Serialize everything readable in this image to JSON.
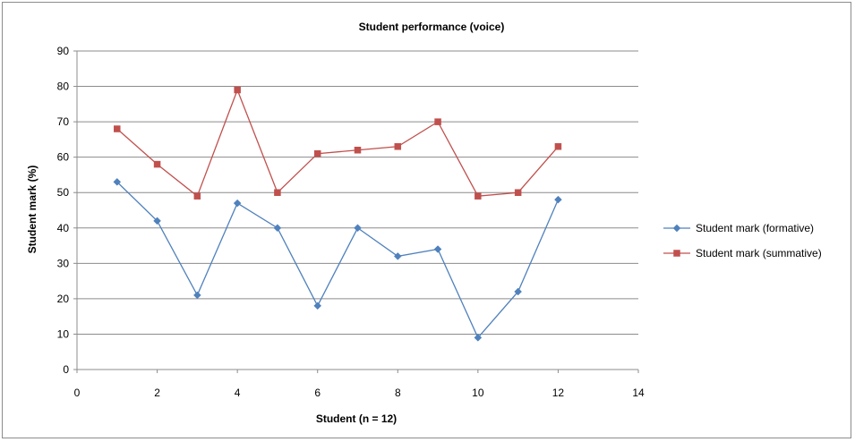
{
  "chart_data": {
    "type": "scatter",
    "title": "Student performance (voice)",
    "xlabel": "Student (n = 12)",
    "ylabel": "Student mark (%)",
    "xlim": [
      0,
      14
    ],
    "ylim": [
      0,
      90
    ],
    "xticks": [
      0,
      2,
      4,
      6,
      8,
      10,
      12,
      14
    ],
    "yticks": [
      0,
      10,
      20,
      30,
      40,
      50,
      60,
      70,
      80,
      90
    ],
    "grid": "horizontal",
    "legend_position": "right",
    "series": [
      {
        "name": "Student mark (formative)",
        "color": "#4f81bd",
        "marker": "diamond",
        "x": [
          1,
          2,
          3,
          4,
          5,
          6,
          7,
          8,
          9,
          10,
          11,
          12
        ],
        "y": [
          53,
          42,
          21,
          47,
          40,
          18,
          40,
          32,
          34,
          9,
          22,
          48
        ]
      },
      {
        "name": "Student mark (summative)",
        "color": "#c0504d",
        "marker": "square",
        "x": [
          1,
          2,
          3,
          4,
          5,
          6,
          7,
          8,
          9,
          10,
          11,
          12
        ],
        "y": [
          68,
          58,
          49,
          79,
          50,
          61,
          62,
          63,
          70,
          49,
          50,
          63
        ]
      }
    ]
  }
}
